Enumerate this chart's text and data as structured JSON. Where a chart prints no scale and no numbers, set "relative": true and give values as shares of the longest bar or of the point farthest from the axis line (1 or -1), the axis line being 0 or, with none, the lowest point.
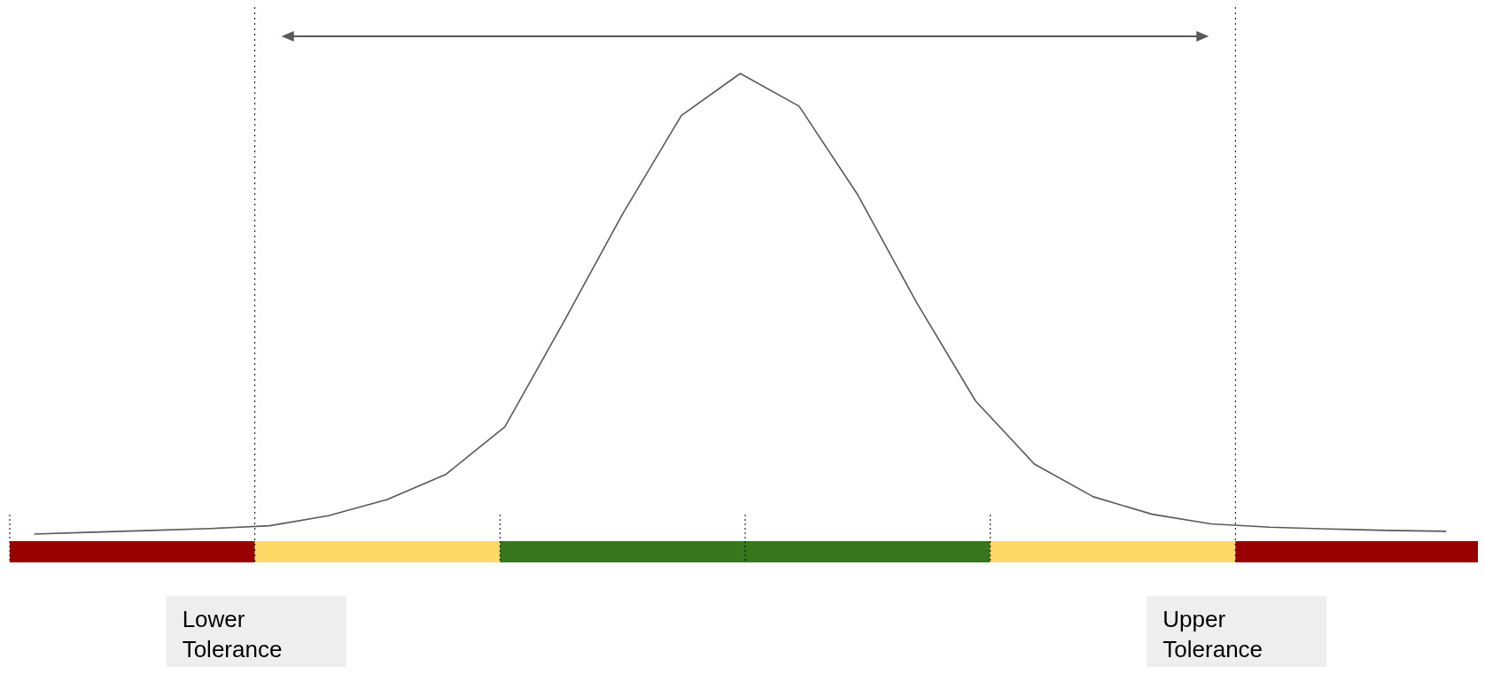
{
  "chart_data": {
    "type": "line",
    "relative": true,
    "categories": [
      null,
      null,
      null,
      null,
      null,
      null,
      null,
      null,
      null,
      null,
      null,
      null,
      null,
      null,
      null,
      null,
      null,
      null,
      null,
      null,
      null,
      null,
      null,
      null,
      null
    ],
    "series": [
      {
        "color": "#595959",
        "values": [
          0,
          0.004,
          0.008,
          0.012,
          0.018,
          0.04,
          0.075,
          0.13,
          0.233,
          0.461,
          0.695,
          0.909,
          1,
          0.929,
          0.736,
          0.502,
          0.289,
          0.152,
          0.081,
          0.043,
          0.022,
          0.015,
          0.011,
          0.008,
          0.006
        ]
      }
    ],
    "marker": "none",
    "line_style": "solid",
    "annotations": [
      "Lower Tolerance",
      "Upper Tolerance"
    ]
  }
}
